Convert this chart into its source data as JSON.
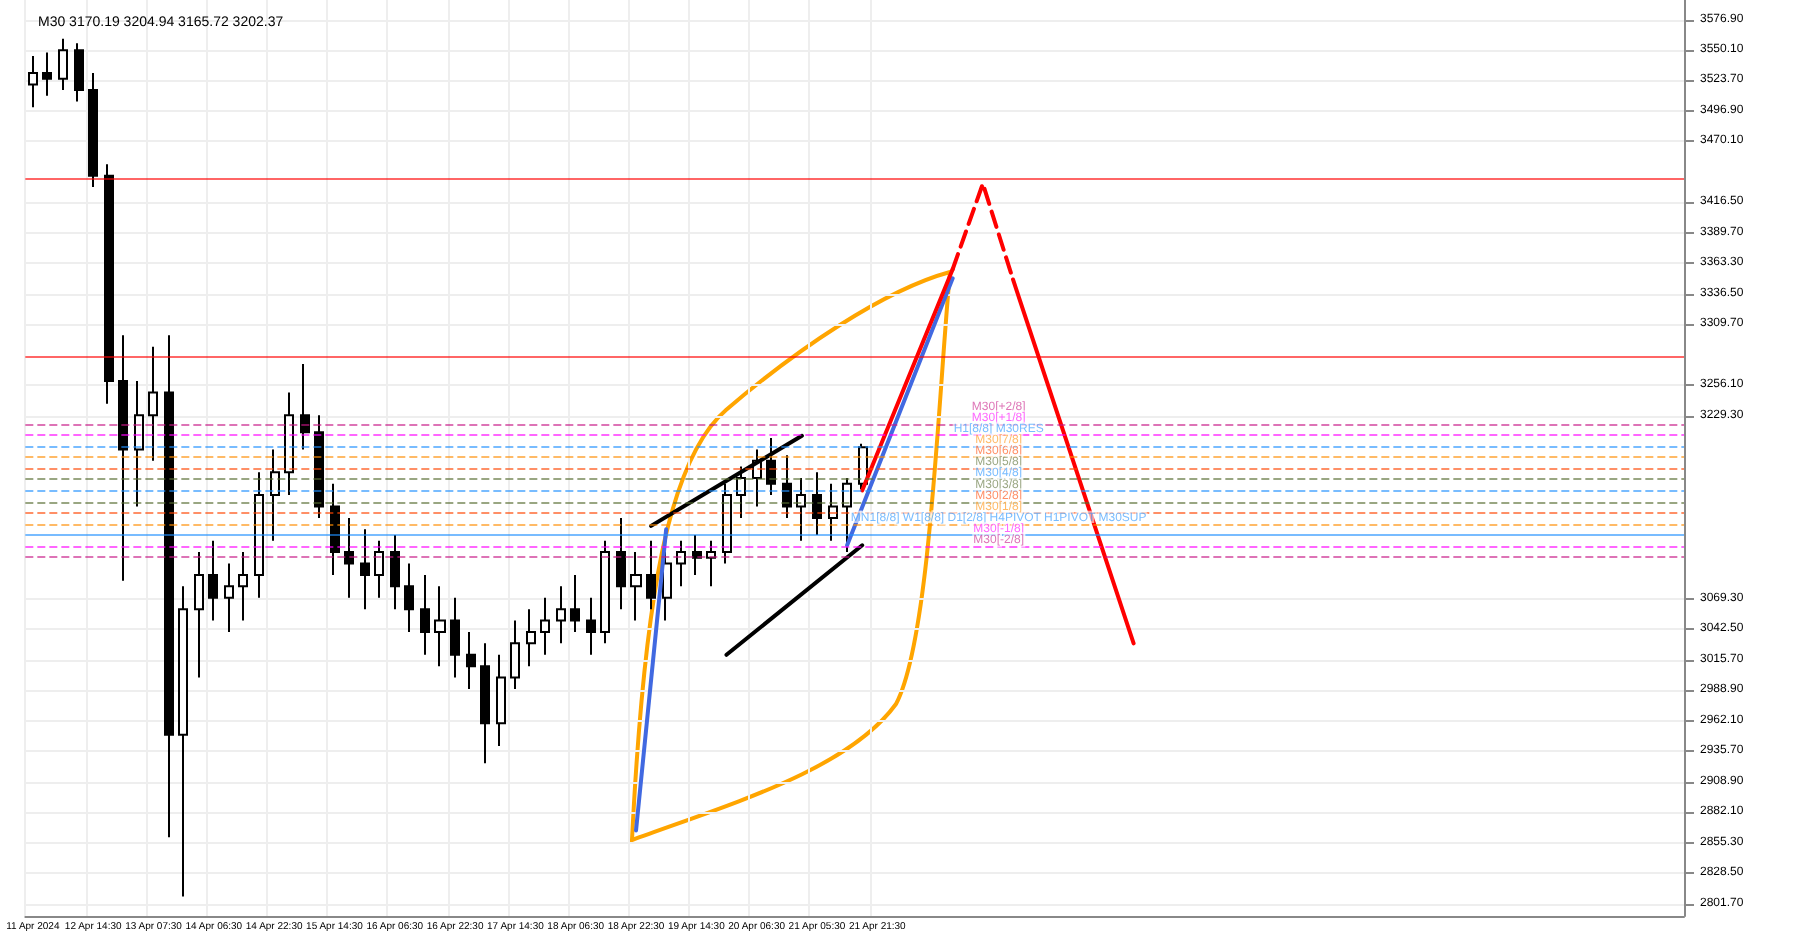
{
  "chart_data": {
    "type": "candlestick",
    "title": "M30 3170.19 3204.94 3165.72 3202.37",
    "categories": [
      "11 Apr 2024",
      null,
      null,
      null,
      "12 Apr 14:30",
      null,
      null,
      null,
      "13 Apr 07:30",
      null,
      null,
      null,
      "14 Apr 06:30",
      null,
      null,
      null,
      "14 Apr 22:30",
      null,
      null,
      null,
      "15 Apr 14:30",
      null,
      null,
      null,
      "16 Apr 06:30",
      null,
      null,
      null,
      "16 Apr 22:30",
      null,
      null,
      null,
      "17 Apr 14:30",
      null,
      null,
      null,
      "18 Apr 06:30",
      null,
      null,
      null,
      "18 Apr 22:30",
      null,
      null,
      null,
      "19 Apr 14:30",
      null,
      null,
      null,
      "20 Apr 06:30",
      null,
      null,
      null,
      "21 Apr 05:30",
      null,
      null,
      null,
      "21 Apr 21:30",
      null,
      null,
      null,
      null,
      null,
      null,
      null,
      null,
      null,
      null,
      null,
      null,
      null,
      null,
      null,
      null,
      null,
      null,
      null,
      null,
      null,
      null,
      null,
      null,
      null,
      null,
      null,
      null,
      null,
      null,
      null,
      null,
      null,
      null,
      null,
      null,
      null,
      null,
      null,
      null,
      null,
      null,
      null,
      null,
      null,
      null,
      null,
      null,
      null,
      null,
      null,
      null,
      null
    ],
    "ylim": [
      2791,
      3594
    ],
    "yticks": [
      {
        "value": 3576.9,
        "label": "3576.90"
      },
      {
        "value": 3550.1,
        "label": "3550.10"
      },
      {
        "value": 3523.7,
        "label": "3523.70"
      },
      {
        "value": 3496.9,
        "label": "3496.90"
      },
      {
        "value": 3470.1,
        "label": "3470.10"
      },
      {
        "value": 3416.5,
        "label": "3416.50"
      },
      {
        "value": 3389.7,
        "label": "3389.70"
      },
      {
        "value": 3363.3,
        "label": "3363.30"
      },
      {
        "value": 3336.5,
        "label": "3336.50"
      },
      {
        "value": 3309.7,
        "label": "3309.70"
      },
      {
        "value": 3256.1,
        "label": "3256.10"
      },
      {
        "value": 3229.3,
        "label": "3229.30"
      },
      {
        "value": 3069.3,
        "label": "3069.30"
      },
      {
        "value": 3042.5,
        "label": "3042.50"
      },
      {
        "value": 3015.7,
        "label": "3015.70"
      },
      {
        "value": 2988.9,
        "label": "2988.90"
      },
      {
        "value": 2962.1,
        "label": "2962.10"
      },
      {
        "value": 2935.7,
        "label": "2935.70"
      },
      {
        "value": 2908.9,
        "label": "2908.90"
      },
      {
        "value": 2882.1,
        "label": "2882.10"
      },
      {
        "value": 2855.3,
        "label": "2855.30"
      },
      {
        "value": 2828.5,
        "label": "2828.50"
      },
      {
        "value": 2801.7,
        "label": "2801.70"
      }
    ],
    "grid": true,
    "series": [
      {
        "color": "#000000",
        "ohlc": [
          [
            3520,
            3545,
            3500,
            3530
          ],
          [
            3530,
            3548,
            3510,
            3525
          ],
          [
            3525,
            3560,
            3515,
            3550
          ],
          [
            3550,
            3556,
            3505,
            3515
          ],
          [
            3515,
            3530,
            3430,
            3440
          ],
          [
            3440,
            3450,
            3240,
            3260
          ],
          [
            3260,
            3300,
            3085,
            3200
          ],
          [
            3200,
            3260,
            3150,
            3230
          ],
          [
            3230,
            3290,
            3190,
            3250
          ],
          [
            3250,
            3300,
            2860,
            2950
          ],
          [
            2950,
            3080,
            2808,
            3060
          ],
          [
            3060,
            3110,
            3000,
            3090
          ],
          [
            3090,
            3120,
            3050,
            3070
          ],
          [
            3070,
            3100,
            3040,
            3080
          ],
          [
            3080,
            3110,
            3050,
            3090
          ],
          [
            3090,
            3180,
            3070,
            3160
          ],
          [
            3160,
            3200,
            3120,
            3180
          ],
          [
            3180,
            3250,
            3160,
            3230
          ],
          [
            3230,
            3275,
            3200,
            3215
          ],
          [
            3215,
            3230,
            3140,
            3150
          ],
          [
            3150,
            3170,
            3090,
            3110
          ],
          [
            3110,
            3140,
            3070,
            3100
          ],
          [
            3100,
            3130,
            3060,
            3090
          ],
          [
            3090,
            3120,
            3070,
            3110
          ],
          [
            3110,
            3125,
            3060,
            3080
          ],
          [
            3080,
            3100,
            3040,
            3060
          ],
          [
            3060,
            3090,
            3020,
            3040
          ],
          [
            3040,
            3080,
            3010,
            3050
          ],
          [
            3050,
            3070,
            3000,
            3020
          ],
          [
            3020,
            3040,
            2990,
            3010
          ],
          [
            3010,
            3030,
            2925,
            2960
          ],
          [
            2960,
            3020,
            2940,
            3000
          ],
          [
            3000,
            3050,
            2990,
            3030
          ],
          [
            3030,
            3060,
            3010,
            3040
          ],
          [
            3040,
            3070,
            3020,
            3050
          ],
          [
            3050,
            3080,
            3030,
            3060
          ],
          [
            3060,
            3090,
            3040,
            3050
          ],
          [
            3050,
            3070,
            3020,
            3040
          ],
          [
            3040,
            3120,
            3030,
            3110
          ],
          [
            3110,
            3140,
            3060,
            3080
          ],
          [
            3080,
            3110,
            3050,
            3090
          ],
          [
            3090,
            3120,
            3060,
            3070
          ],
          [
            3070,
            3110,
            3050,
            3100
          ],
          [
            3100,
            3120,
            3080,
            3110
          ],
          [
            3110,
            3125,
            3090,
            3105
          ],
          [
            3105,
            3120,
            3080,
            3110
          ],
          [
            3110,
            3170,
            3100,
            3160
          ],
          [
            3160,
            3185,
            3140,
            3175
          ],
          [
            3175,
            3200,
            3150,
            3190
          ],
          [
            3190,
            3210,
            3160,
            3170
          ],
          [
            3170,
            3195,
            3140,
            3150
          ],
          [
            3150,
            3175,
            3120,
            3160
          ],
          [
            3160,
            3180,
            3125,
            3140
          ],
          [
            3140,
            3170,
            3120,
            3150
          ],
          [
            3150,
            3175,
            3110,
            3170
          ],
          [
            3170,
            3205,
            3165,
            3202
          ],
          null,
          null,
          null,
          null,
          null,
          null,
          null,
          null,
          null,
          null,
          null,
          null,
          null,
          null,
          null,
          null,
          null,
          null,
          null,
          null,
          null,
          null,
          null,
          null,
          null,
          null,
          null,
          null,
          null,
          null,
          null,
          null,
          null,
          null,
          null,
          null,
          null,
          null,
          null,
          null,
          null,
          null,
          null,
          null,
          null,
          null,
          null,
          null,
          null,
          null,
          null,
          null,
          null,
          null
        ]
      },
      {
        "type": "line",
        "color": "#000000",
        "line_style": "solid",
        "values": [
          null,
          null,
          null,
          null,
          null,
          null,
          null,
          null,
          null,
          null,
          null,
          null,
          null,
          null,
          null,
          null,
          null,
          null,
          null,
          null,
          null,
          null,
          null,
          null,
          null,
          null,
          null,
          null,
          null,
          null,
          null,
          null,
          null,
          null,
          null,
          null,
          null,
          null,
          null,
          null,
          null,
          3133,
          null,
          null,
          null,
          null,
          null,
          null,
          null,
          null,
          null,
          3212,
          null,
          null,
          null,
          null,
          null,
          null,
          null,
          null,
          null,
          null,
          null,
          null,
          null,
          null,
          null,
          null,
          null,
          null,
          null,
          null,
          null,
          null,
          null,
          null,
          null,
          null,
          null,
          null,
          null,
          null,
          null,
          null,
          null,
          null,
          null,
          null,
          null,
          null,
          null,
          null,
          null,
          null,
          null,
          null,
          null,
          null,
          null,
          null,
          null,
          null,
          null,
          null,
          null,
          null,
          null,
          null,
          null,
          null
        ]
      },
      {
        "type": "line",
        "color": "#000000",
        "line_style": "solid",
        "values": [
          null,
          null,
          null,
          null,
          null,
          null,
          null,
          null,
          null,
          null,
          null,
          null,
          null,
          null,
          null,
          null,
          null,
          null,
          null,
          null,
          null,
          null,
          null,
          null,
          null,
          null,
          null,
          null,
          null,
          null,
          null,
          null,
          null,
          null,
          null,
          null,
          null,
          null,
          null,
          null,
          null,
          null,
          null,
          null,
          null,
          null,
          3020,
          null,
          null,
          null,
          null,
          null,
          null,
          null,
          null,
          3116,
          null,
          null,
          null,
          null,
          null,
          null,
          null,
          null,
          null,
          null,
          null,
          null,
          null,
          null,
          null,
          null,
          null,
          null,
          null,
          null,
          null,
          null,
          null,
          null,
          null,
          null,
          null,
          null,
          null,
          null,
          null,
          null,
          null,
          null,
          null,
          null,
          null,
          null,
          null,
          null,
          null,
          null,
          null,
          null,
          null,
          null,
          null,
          null,
          null,
          null,
          null,
          null,
          null,
          null
        ]
      },
      {
        "type": "line",
        "color": "#4169e1",
        "line_style": "solid",
        "values": [
          null,
          null,
          null,
          null,
          null,
          null,
          null,
          null,
          null,
          null,
          null,
          null,
          null,
          null,
          null,
          null,
          null,
          null,
          null,
          null,
          null,
          null,
          null,
          null,
          null,
          null,
          null,
          null,
          null,
          null,
          null,
          null,
          null,
          null,
          null,
          null,
          null,
          null,
          null,
          null,
          2866,
          null,
          3130,
          null,
          null,
          null,
          null,
          null,
          null,
          null,
          null,
          null,
          null,
          null,
          null,
          null,
          null,
          null,
          null,
          null,
          null,
          null,
          null,
          null,
          null,
          null,
          null,
          null,
          null,
          null,
          null,
          null,
          null,
          null,
          null,
          null,
          null,
          null,
          null,
          null,
          null,
          null,
          null,
          null,
          null,
          null,
          null,
          null,
          null,
          null,
          null,
          null,
          null,
          null,
          null,
          null,
          null,
          null,
          null,
          null,
          null,
          null,
          null,
          null,
          null,
          null,
          null,
          null,
          null,
          null
        ]
      },
      {
        "type": "line",
        "color": "#4169e1",
        "line_style": "solid",
        "values": [
          null,
          null,
          null,
          null,
          null,
          null,
          null,
          null,
          null,
          null,
          null,
          null,
          null,
          null,
          null,
          null,
          null,
          null,
          null,
          null,
          null,
          null,
          null,
          null,
          null,
          null,
          null,
          null,
          null,
          null,
          null,
          null,
          null,
          null,
          null,
          null,
          null,
          null,
          null,
          null,
          null,
          null,
          null,
          null,
          null,
          null,
          null,
          null,
          null,
          null,
          null,
          null,
          null,
          null,
          3116,
          null,
          null,
          null,
          null,
          null,
          null,
          3350,
          null,
          null,
          null,
          null,
          null,
          null,
          null,
          null,
          null,
          null,
          null,
          null,
          null,
          null,
          null,
          null,
          null,
          null,
          null,
          null,
          null,
          null,
          null,
          null,
          null,
          null,
          null,
          null,
          null,
          null,
          null,
          null,
          null,
          null,
          null,
          null,
          null,
          null,
          null,
          null,
          null,
          null,
          null,
          null,
          null,
          null,
          null,
          null
        ]
      },
      {
        "type": "line",
        "color": "#ff0000",
        "line_style": "solid",
        "values": [
          null,
          null,
          null,
          null,
          null,
          null,
          null,
          null,
          null,
          null,
          null,
          null,
          null,
          null,
          null,
          null,
          null,
          null,
          null,
          null,
          null,
          null,
          null,
          null,
          null,
          null,
          null,
          null,
          null,
          null,
          null,
          null,
          null,
          null,
          null,
          null,
          null,
          null,
          null,
          null,
          null,
          null,
          null,
          null,
          null,
          null,
          null,
          null,
          null,
          null,
          null,
          null,
          null,
          null,
          null,
          3164,
          null,
          null,
          null,
          null,
          null,
          3358,
          null,
          null,
          null,
          null,
          null,
          null,
          null,
          null,
          null,
          null,
          null,
          null,
          null,
          null,
          null,
          null,
          null,
          null,
          null,
          null,
          null,
          null,
          null,
          null,
          null,
          null,
          null,
          null,
          null,
          null,
          null,
          null,
          null,
          null,
          null,
          null,
          null,
          null,
          null,
          null,
          null,
          null,
          null,
          null,
          null,
          null,
          null,
          null
        ]
      },
      {
        "type": "line",
        "color": "#ff0000",
        "line_style": "dashed",
        "values": [
          null,
          null,
          null,
          null,
          null,
          null,
          null,
          null,
          null,
          null,
          null,
          null,
          null,
          null,
          null,
          null,
          null,
          null,
          null,
          null,
          null,
          null,
          null,
          null,
          null,
          null,
          null,
          null,
          null,
          null,
          null,
          null,
          null,
          null,
          null,
          null,
          null,
          null,
          null,
          null,
          null,
          null,
          null,
          null,
          null,
          null,
          null,
          null,
          null,
          null,
          null,
          null,
          null,
          null,
          null,
          null,
          null,
          null,
          null,
          null,
          null,
          3358,
          null,
          3433,
          null,
          3349,
          null,
          null,
          null,
          null,
          null,
          null,
          null,
          null,
          null,
          null,
          null,
          null,
          null,
          null,
          null,
          null,
          null,
          null,
          null,
          null,
          null,
          null,
          null,
          null,
          null,
          null,
          null,
          null,
          null,
          null,
          null,
          null,
          null,
          null,
          null,
          null,
          null,
          null,
          null,
          null,
          null,
          null,
          null,
          null
        ]
      },
      {
        "type": "line",
        "color": "#ff0000",
        "line_style": "solid",
        "values": [
          null,
          null,
          null,
          null,
          null,
          null,
          null,
          null,
          null,
          null,
          null,
          null,
          null,
          null,
          null,
          null,
          null,
          null,
          null,
          null,
          null,
          null,
          null,
          null,
          null,
          null,
          null,
          null,
          null,
          null,
          null,
          null,
          null,
          null,
          null,
          null,
          null,
          null,
          null,
          null,
          null,
          null,
          null,
          null,
          null,
          null,
          null,
          null,
          null,
          null,
          null,
          null,
          null,
          null,
          null,
          null,
          null,
          null,
          null,
          null,
          null,
          null,
          null,
          null,
          null,
          3349,
          null,
          null,
          null,
          null,
          null,
          null,
          null,
          3030,
          null,
          null,
          null,
          null,
          null,
          null,
          null,
          null,
          null,
          null,
          null,
          null,
          null,
          null,
          null,
          null,
          null,
          null,
          null,
          null,
          null,
          null,
          null,
          null,
          null,
          null,
          null,
          null,
          null,
          null,
          null,
          null,
          null,
          null,
          null,
          null
        ]
      }
    ],
    "ref_lines": [
      {
        "axis": "y",
        "value": 3437.5,
        "color": "#ff0000",
        "line_style": "solid"
      },
      {
        "axis": "y",
        "value": 3281.25,
        "color": "#ff0000",
        "line_style": "solid"
      },
      {
        "axis": "y",
        "value": 3222.66,
        "label": "M30[+2/8]",
        "color": "#c71585",
        "line_style": "dashed"
      },
      {
        "axis": "y",
        "value": 3212.89,
        "label": "M30[+1/8]",
        "color": "#ff00ff",
        "line_style": "dashed"
      },
      {
        "axis": "y",
        "value": 3203.12,
        "label": "H1[8/8] M30RES",
        "color": "#1e90ff",
        "line_style": "dashed"
      },
      {
        "axis": "y",
        "value": 3193.36,
        "label": "M30[7/8]",
        "color": "#ff8c00",
        "line_style": "dashed"
      },
      {
        "axis": "y",
        "value": 3183.59,
        "label": "M30[6/8]",
        "color": "#ff4500",
        "line_style": "dashed"
      },
      {
        "axis": "y",
        "value": 3173.83,
        "label": "M30[5/8]",
        "color": "#556b2f",
        "line_style": "dashed"
      },
      {
        "axis": "y",
        "value": 3164.06,
        "label": "M30[4/8]",
        "color": "#1e90ff",
        "line_style": "dashed"
      },
      {
        "axis": "y",
        "value": 3154.3,
        "label": "M30[3/8]",
        "color": "#556b2f",
        "line_style": "dashed"
      },
      {
        "axis": "y",
        "value": 3144.53,
        "label": "M30[2/8]",
        "color": "#ff4500",
        "line_style": "dashed"
      },
      {
        "axis": "y",
        "value": 3134.77,
        "label": "M30[1/8]",
        "color": "#ff8c00",
        "line_style": "dashed"
      },
      {
        "axis": "y",
        "value": 3125,
        "label": "MN1[8/8] W1[8/8] D1[2/8] H4PIVOT H1PIVOT M30SUP",
        "color": "#1e90ff",
        "line_style": "solid"
      },
      {
        "axis": "y",
        "value": 3115.23,
        "label": "M30[-1/8]",
        "color": "#ff00ff",
        "line_style": "dashed"
      },
      {
        "axis": "y",
        "value": 3105.47,
        "label": "M30[-2/8]",
        "color": "#c71585",
        "line_style": "dashed"
      }
    ]
  }
}
